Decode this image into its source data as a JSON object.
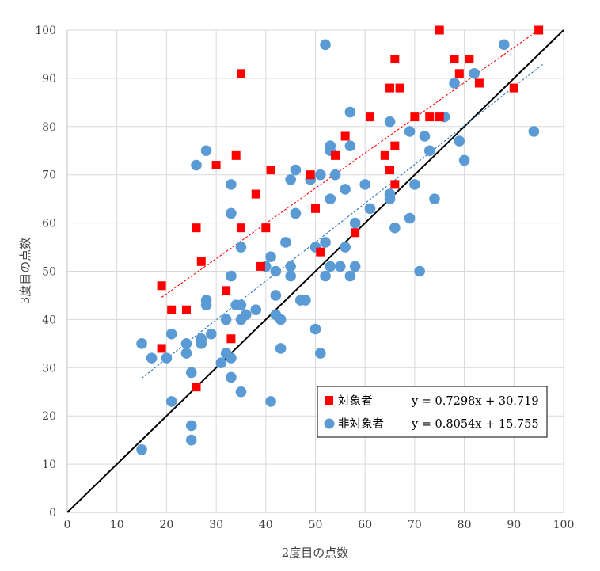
{
  "chart_data": {
    "type": "scatter",
    "xlabel": "2度目の点数",
    "ylabel": "3度目の点数",
    "xlim": [
      0,
      100
    ],
    "ylim": [
      0,
      100
    ],
    "xticks": [
      0,
      10,
      20,
      30,
      40,
      50,
      60,
      70,
      80,
      90,
      100
    ],
    "yticks": [
      0,
      10,
      20,
      30,
      40,
      50,
      60,
      70,
      80,
      90,
      100
    ],
    "grid": true,
    "legend_position": "lower-right",
    "reference_line": {
      "slope": 1,
      "intercept": 0,
      "color": "#000000"
    },
    "series": [
      {
        "name": "対象者",
        "marker": "square",
        "color": "#ff0000",
        "trend_equation": "y = 0.7298x + 30.719",
        "trend": {
          "slope": 0.7298,
          "intercept": 30.719,
          "x_range": [
            19,
            95
          ],
          "color": "#ff0000"
        },
        "points": [
          [
            19,
            47
          ],
          [
            19,
            34
          ],
          [
            21,
            42
          ],
          [
            24,
            42
          ],
          [
            26,
            59
          ],
          [
            26,
            26
          ],
          [
            27,
            52
          ],
          [
            30,
            72
          ],
          [
            32,
            46
          ],
          [
            33,
            36
          ],
          [
            34,
            74
          ],
          [
            35,
            91
          ],
          [
            35,
            59
          ],
          [
            38,
            66
          ],
          [
            39,
            51
          ],
          [
            40,
            59
          ],
          [
            41,
            71
          ],
          [
            49,
            70
          ],
          [
            50,
            63
          ],
          [
            51,
            54
          ],
          [
            54,
            74
          ],
          [
            56,
            78
          ],
          [
            58,
            58
          ],
          [
            61,
            82
          ],
          [
            64,
            74
          ],
          [
            65,
            71
          ],
          [
            65,
            88
          ],
          [
            66,
            94
          ],
          [
            66,
            76
          ],
          [
            66,
            68
          ],
          [
            67,
            88
          ],
          [
            70,
            82
          ],
          [
            73,
            82
          ],
          [
            75,
            82
          ],
          [
            75,
            100
          ],
          [
            78,
            94
          ],
          [
            79,
            91
          ],
          [
            81,
            94
          ],
          [
            83,
            89
          ],
          [
            90,
            88
          ],
          [
            95,
            100
          ]
        ]
      },
      {
        "name": "非対象者",
        "marker": "circle",
        "color": "#5b9bd5",
        "trend_equation": "y = 0.8054x + 15.755",
        "trend": {
          "slope": 0.8054,
          "intercept": 15.755,
          "x_range": [
            15,
            96
          ],
          "color": "#2e75b6"
        },
        "points": [
          [
            15,
            13
          ],
          [
            15,
            35
          ],
          [
            17,
            32
          ],
          [
            20,
            32
          ],
          [
            21,
            23
          ],
          [
            21,
            37
          ],
          [
            24,
            33
          ],
          [
            24,
            35
          ],
          [
            25,
            29
          ],
          [
            25,
            18
          ],
          [
            25,
            15
          ],
          [
            26,
            72
          ],
          [
            27,
            35
          ],
          [
            27,
            36
          ],
          [
            28,
            75
          ],
          [
            28,
            43
          ],
          [
            28,
            44
          ],
          [
            29,
            37
          ],
          [
            31,
            31
          ],
          [
            32,
            33
          ],
          [
            32,
            40
          ],
          [
            33,
            68
          ],
          [
            33,
            62
          ],
          [
            33,
            49
          ],
          [
            33,
            32
          ],
          [
            33,
            28
          ],
          [
            34,
            43
          ],
          [
            35,
            43
          ],
          [
            35,
            40
          ],
          [
            35,
            25
          ],
          [
            35,
            55
          ],
          [
            36,
            41
          ],
          [
            38,
            42
          ],
          [
            40,
            51
          ],
          [
            41,
            53
          ],
          [
            41,
            23
          ],
          [
            42,
            50
          ],
          [
            42,
            45
          ],
          [
            42,
            41
          ],
          [
            43,
            40
          ],
          [
            43,
            34
          ],
          [
            44,
            56
          ],
          [
            45,
            51
          ],
          [
            45,
            49
          ],
          [
            45,
            69
          ],
          [
            46,
            62
          ],
          [
            46,
            71
          ],
          [
            47,
            44
          ],
          [
            48,
            44
          ],
          [
            49,
            69
          ],
          [
            50,
            55
          ],
          [
            50,
            38
          ],
          [
            51,
            33
          ],
          [
            51,
            70
          ],
          [
            52,
            97
          ],
          [
            52,
            56
          ],
          [
            52,
            49
          ],
          [
            53,
            76
          ],
          [
            53,
            75
          ],
          [
            53,
            65
          ],
          [
            53,
            51
          ],
          [
            54,
            70
          ],
          [
            55,
            51
          ],
          [
            56,
            67
          ],
          [
            56,
            55
          ],
          [
            57,
            83
          ],
          [
            57,
            76
          ],
          [
            57,
            49
          ],
          [
            58,
            60
          ],
          [
            58,
            51
          ],
          [
            60,
            68
          ],
          [
            61,
            63
          ],
          [
            65,
            81
          ],
          [
            65,
            66
          ],
          [
            65,
            65
          ],
          [
            66,
            59
          ],
          [
            69,
            79
          ],
          [
            69,
            61
          ],
          [
            70,
            68
          ],
          [
            71,
            50
          ],
          [
            72,
            78
          ],
          [
            73,
            75
          ],
          [
            74,
            65
          ],
          [
            76,
            82
          ],
          [
            78,
            89
          ],
          [
            79,
            77
          ],
          [
            80,
            73
          ],
          [
            82,
            91
          ],
          [
            88,
            97
          ],
          [
            94,
            79
          ]
        ]
      }
    ]
  }
}
